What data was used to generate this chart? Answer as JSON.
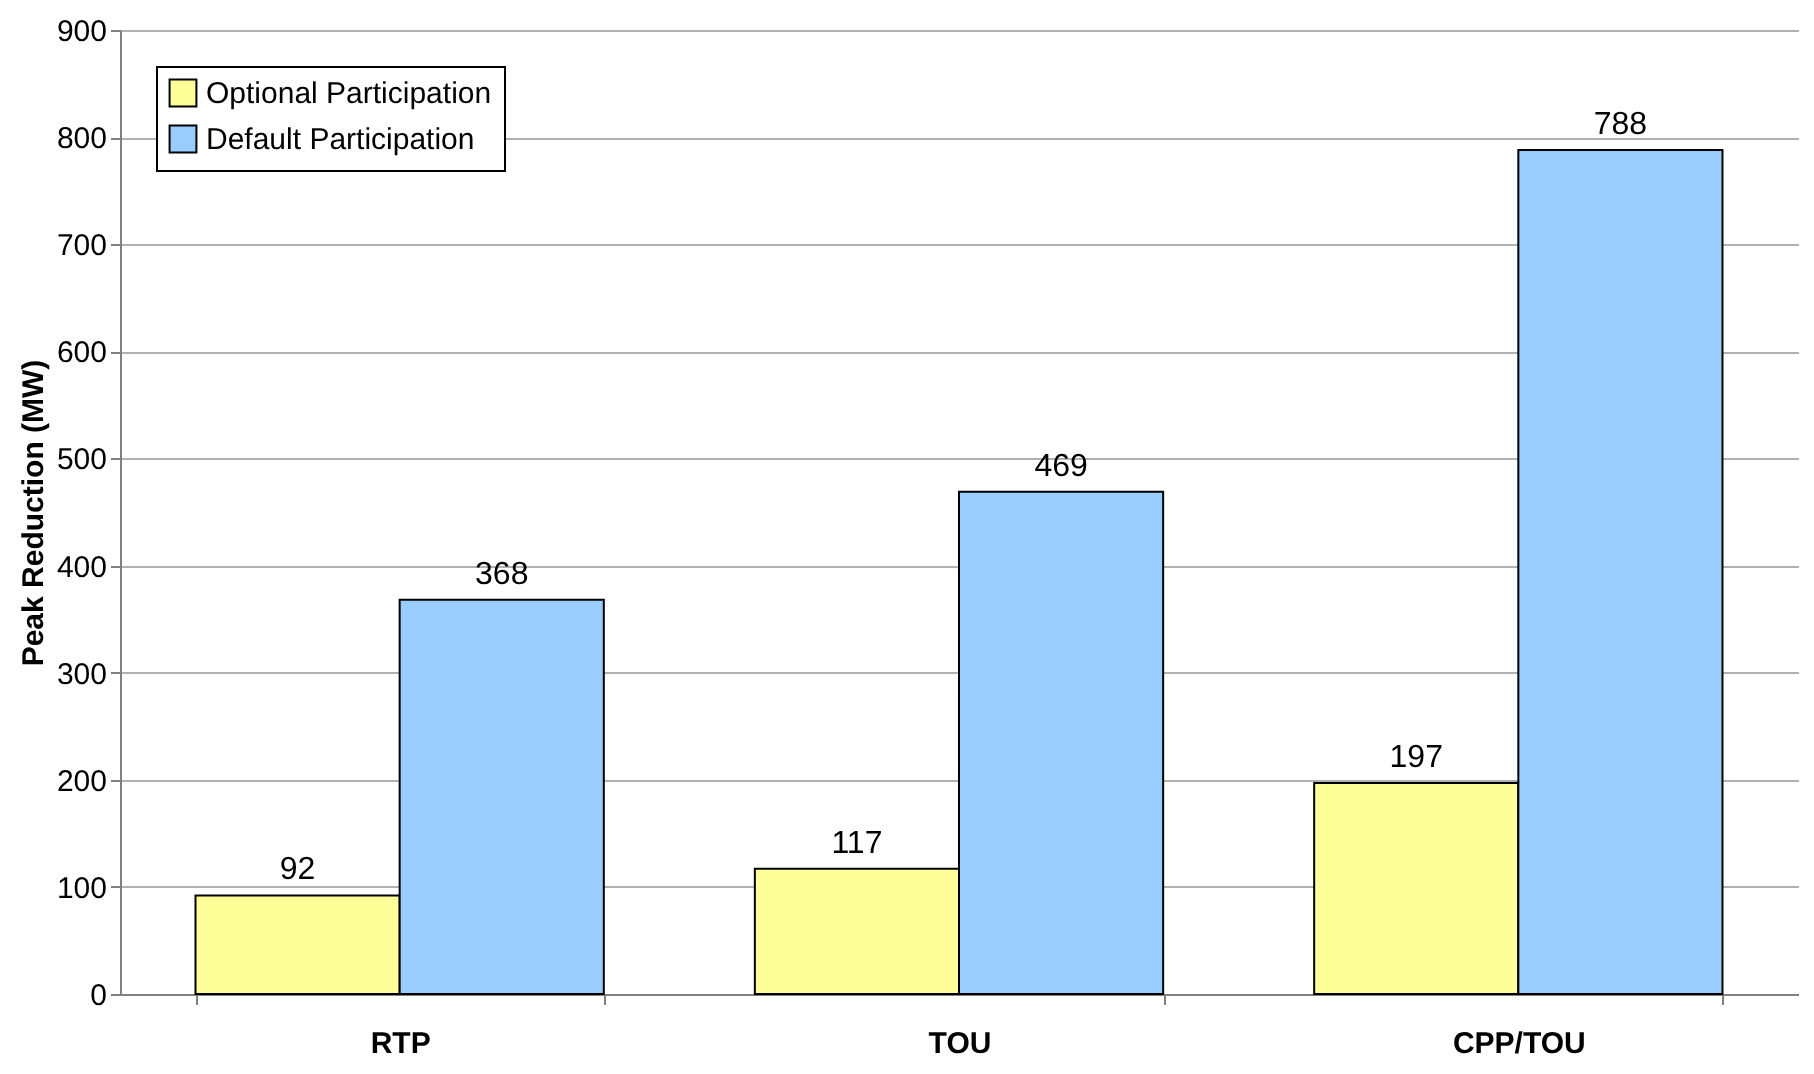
{
  "chart_data": {
    "type": "bar",
    "ylabel": "Peak Reduction (MW)",
    "categories": [
      "RTP",
      "TOU",
      "CPP/TOU"
    ],
    "series": [
      {
        "name": "Optional Participation",
        "color": "#ffff99",
        "values": [
          92,
          117,
          197
        ]
      },
      {
        "name": "Default Participation",
        "color": "#99ccff",
        "values": [
          368,
          469,
          788
        ]
      }
    ],
    "ylim": [
      0,
      900
    ],
    "yticks": [
      0,
      100,
      200,
      300,
      400,
      500,
      600,
      700,
      800,
      900
    ],
    "grid": "y",
    "legend": "top left",
    "data_labels": true
  }
}
